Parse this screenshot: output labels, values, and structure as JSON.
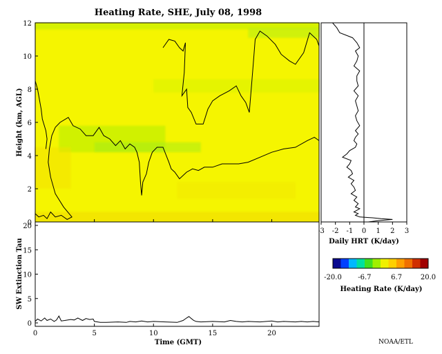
{
  "title": "Heating Rate, SHE, July 08, 1998",
  "credit": "NOAA/ETL",
  "chart_data": [
    {
      "type": "heatmap",
      "title": "Heating Rate, SHE, July 08, 1998",
      "xlabel": "",
      "ylabel": "Height (km, AGL)",
      "xlim": [
        0,
        24
      ],
      "ylim": [
        0,
        12
      ],
      "x_ticks": [
        "0",
        "5",
        "10",
        "15",
        "20"
      ],
      "y_ticks": [
        "0",
        "2",
        "4",
        "6",
        "8",
        "10",
        "12"
      ],
      "colorbar": {
        "label": "Heating Rate (K/day)",
        "range": [
          -20,
          20
        ],
        "ticks": [
          "-20.0",
          "-6.7",
          "6.7",
          "20.0"
        ],
        "colors": [
          "#0a0a90",
          "#0040ff",
          "#00b8ff",
          "#00e0a0",
          "#40e020",
          "#a0f000",
          "#f0f000",
          "#ffd000",
          "#ffa000",
          "#f07000",
          "#d03000",
          "#a00000"
        ]
      },
      "field_dominant_range_K_per_day": [
        -2,
        2
      ],
      "contours": [
        {
          "name": "lower",
          "points": [
            [
              0,
              0.5
            ],
            [
              0.3,
              0.3
            ],
            [
              0.7,
              0.4
            ],
            [
              1,
              0.2
            ],
            [
              1.3,
              0.6
            ],
            [
              1.7,
              0.3
            ],
            [
              2.2,
              0.4
            ],
            [
              2.7,
              0.15
            ],
            [
              3.1,
              0.3
            ],
            [
              2.4,
              0.9
            ],
            [
              1.7,
              1.7
            ],
            [
              1.3,
              2.7
            ],
            [
              1.1,
              3.6
            ],
            [
              1.2,
              4.4
            ],
            [
              1.4,
              5.2
            ],
            [
              1.7,
              5.7
            ],
            [
              2.1,
              6.0
            ],
            [
              2.8,
              6.3
            ],
            [
              3.2,
              5.8
            ],
            [
              3.8,
              5.6
            ],
            [
              4.3,
              5.2
            ],
            [
              4.9,
              5.2
            ],
            [
              5.4,
              5.7
            ],
            [
              5.8,
              5.2
            ],
            [
              6.3,
              5.0
            ],
            [
              6.8,
              4.6
            ],
            [
              7.2,
              4.9
            ],
            [
              7.6,
              4.4
            ],
            [
              8.0,
              4.7
            ],
            [
              8.4,
              4.5
            ],
            [
              8.6,
              4.2
            ],
            [
              8.8,
              3.6
            ],
            [
              8.9,
              2.4
            ],
            [
              9.0,
              1.6
            ],
            [
              9.1,
              2.4
            ],
            [
              9.4,
              2.9
            ],
            [
              9.6,
              3.6
            ],
            [
              9.9,
              4.2
            ],
            [
              10.3,
              4.5
            ],
            [
              10.8,
              4.5
            ],
            [
              11.3,
              3.6
            ],
            [
              11.5,
              3.2
            ],
            [
              11.8,
              3.0
            ],
            [
              12.2,
              2.6
            ],
            [
              12.8,
              3.0
            ],
            [
              13.3,
              3.2
            ],
            [
              13.8,
              3.1
            ],
            [
              14.3,
              3.3
            ],
            [
              15.0,
              3.3
            ],
            [
              15.8,
              3.5
            ],
            [
              16.5,
              3.5
            ],
            [
              17.2,
              3.5
            ],
            [
              18.0,
              3.6
            ],
            [
              19.0,
              3.9
            ],
            [
              20.0,
              4.2
            ],
            [
              21.0,
              4.4
            ],
            [
              22.0,
              4.5
            ],
            [
              23.0,
              4.9
            ],
            [
              23.6,
              5.1
            ],
            [
              24,
              4.9
            ]
          ]
        },
        {
          "name": "upper",
          "points": [
            [
              10.8,
              10.5
            ],
            [
              11.3,
              11.0
            ],
            [
              11.8,
              10.9
            ],
            [
              12.2,
              10.5
            ],
            [
              12.5,
              10.3
            ],
            [
              12.7,
              10.8
            ],
            [
              12.6,
              9.0
            ],
            [
              12.4,
              7.6
            ],
            [
              12.8,
              8.0
            ],
            [
              12.9,
              6.9
            ],
            [
              13.2,
              6.6
            ],
            [
              13.6,
              5.9
            ],
            [
              14.2,
              5.9
            ],
            [
              14.6,
              6.8
            ],
            [
              15.0,
              7.3
            ],
            [
              15.6,
              7.6
            ],
            [
              16.4,
              7.9
            ],
            [
              17.0,
              8.2
            ],
            [
              17.4,
              7.6
            ],
            [
              17.8,
              7.2
            ],
            [
              18.1,
              6.6
            ],
            [
              18.4,
              9.2
            ],
            [
              18.6,
              11.0
            ],
            [
              19.0,
              11.5
            ],
            [
              19.6,
              11.2
            ],
            [
              20.3,
              10.7
            ],
            [
              20.8,
              10.1
            ],
            [
              21.5,
              9.7
            ],
            [
              22.0,
              9.5
            ],
            [
              22.7,
              10.2
            ],
            [
              23.2,
              11.4
            ],
            [
              23.8,
              11.0
            ],
            [
              24,
              10.6
            ]
          ]
        },
        {
          "name": "left-edge",
          "points": [
            [
              0,
              8.5
            ],
            [
              0.2,
              8.0
            ],
            [
              0.5,
              6.8
            ],
            [
              0.6,
              6.2
            ],
            [
              0.9,
              5.5
            ],
            [
              1.0,
              5.0
            ],
            [
              0.9,
              4.4
            ]
          ]
        }
      ]
    },
    {
      "type": "line",
      "title": "",
      "xlabel": "Daily HRT (K/day)",
      "ylabel": "",
      "xlim": [
        -3,
        3
      ],
      "ylim": [
        0,
        12
      ],
      "x_ticks": [
        "-3",
        "-2",
        "-1",
        "0",
        "1",
        "2",
        "3"
      ],
      "y_ticks": [],
      "vline_at": 0,
      "x": [
        -2.2,
        -1.9,
        -1.7,
        -0.8,
        -0.5,
        -0.3,
        -0.6,
        -0.4,
        -0.5,
        -0.7,
        -0.3,
        -0.5,
        -0.5,
        -0.4,
        -0.7,
        -0.4,
        -0.6,
        -0.5,
        -0.4,
        -0.6,
        -0.5,
        -0.3,
        -0.6,
        -0.4,
        -0.6,
        -0.7,
        -0.5,
        -0.6,
        -1.0,
        -1.2,
        -1.5,
        -0.9,
        -1.0,
        -1.2,
        -0.9,
        -0.8,
        -1.1,
        -0.7,
        -0.9,
        -0.7,
        -0.6,
        -0.9,
        -0.5,
        -0.7,
        -0.4,
        -0.6,
        -0.3,
        -0.5,
        -0.7,
        -0.4,
        -0.6,
        -0.3,
        0.6,
        1.2,
        2.0,
        1.0,
        0.3
      ],
      "y": [
        12.0,
        11.7,
        11.4,
        11.1,
        10.8,
        10.5,
        10.3,
        10.0,
        9.7,
        9.4,
        9.1,
        8.8,
        8.5,
        8.2,
        7.9,
        7.6,
        7.3,
        7.0,
        6.7,
        6.4,
        6.1,
        5.8,
        5.5,
        5.3,
        5.1,
        4.9,
        4.7,
        4.5,
        4.3,
        4.1,
        3.9,
        3.7,
        3.5,
        3.3,
        3.1,
        2.9,
        2.7,
        2.5,
        2.3,
        2.1,
        1.9,
        1.7,
        1.5,
        1.3,
        1.1,
        0.9,
        0.8,
        0.7,
        0.6,
        0.5,
        0.4,
        0.3,
        0.25,
        0.2,
        0.15,
        0.08,
        0.0
      ]
    },
    {
      "type": "line",
      "title": "",
      "xlabel": "Time (GMT)",
      "ylabel": "SW Extinction Tau",
      "xlim": [
        0,
        24
      ],
      "ylim": [
        0,
        20
      ],
      "x_ticks": [
        "0",
        "5",
        "10",
        "15",
        "20"
      ],
      "y_ticks": [
        "0",
        "5",
        "10",
        "15",
        "20"
      ],
      "x": [
        0.0,
        0.2,
        0.5,
        0.8,
        1.0,
        1.3,
        1.6,
        1.8,
        2.0,
        2.2,
        2.5,
        3.0,
        3.3,
        3.6,
        4.0,
        4.3,
        4.6,
        4.9,
        5.0,
        5.5,
        6.0,
        7.0,
        7.7,
        8.0,
        8.5,
        9.0,
        9.5,
        10.0,
        11.0,
        12.0,
        12.5,
        12.8,
        13.0,
        13.2,
        13.4,
        13.6,
        14.0,
        15.0,
        16.0,
        16.5,
        17.0,
        17.5,
        18.0,
        19.0,
        20.0,
        20.5,
        21.0,
        22.0,
        22.5,
        23.0,
        23.5,
        24.0
      ],
      "y": [
        0.3,
        0.8,
        0.4,
        1.0,
        0.5,
        0.8,
        0.3,
        0.6,
        1.4,
        0.4,
        0.5,
        0.7,
        0.6,
        1.0,
        0.5,
        0.9,
        0.7,
        0.8,
        0.3,
        0.1,
        0.1,
        0.2,
        0.1,
        0.3,
        0.2,
        0.4,
        0.2,
        0.3,
        0.2,
        0.1,
        0.5,
        1.0,
        1.3,
        0.9,
        0.5,
        0.3,
        0.2,
        0.3,
        0.2,
        0.5,
        0.3,
        0.2,
        0.3,
        0.2,
        0.4,
        0.2,
        0.3,
        0.2,
        0.3,
        0.2,
        0.3,
        0.2
      ]
    }
  ]
}
